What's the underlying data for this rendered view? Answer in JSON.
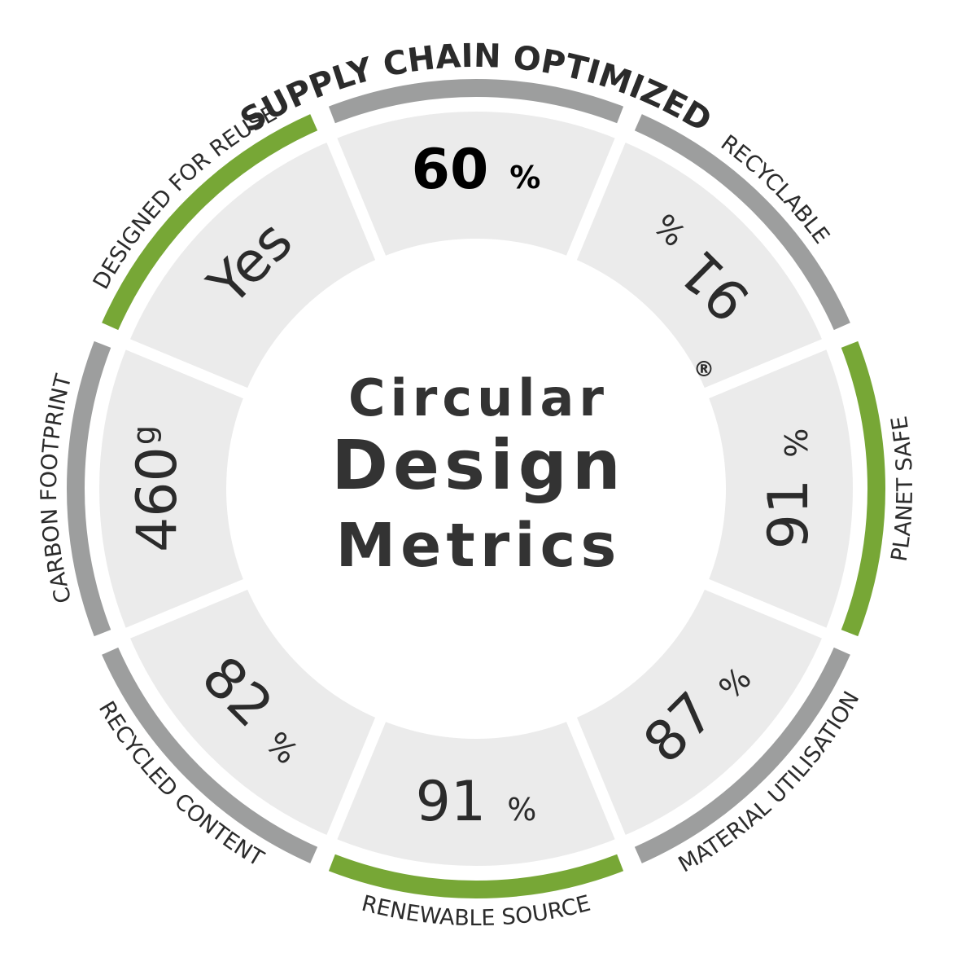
{
  "center": {
    "lines": [
      "Circular",
      "Design",
      "Metrics"
    ],
    "mark": "®"
  },
  "segments": [
    {
      "label": "SUPPLY CHAIN OPTIMIZED",
      "value": 60,
      "unit": "%"
    },
    {
      "label": "RECYCLABLE",
      "value": 91,
      "unit": "%"
    },
    {
      "label": "PLANET SAFE",
      "value": 91,
      "unit": "%"
    },
    {
      "label": "MATERIAL UTILISATION",
      "value": 87,
      "unit": "%"
    },
    {
      "label": "RENEWABLE SOURCE",
      "value": 91,
      "unit": "%"
    },
    {
      "label": "RECYCLED CONTENT",
      "value": 82,
      "unit": "%"
    },
    {
      "label": "CARBON FOOTPRINT",
      "value": 460,
      "unit": "g"
    },
    {
      "label": "DESIGNED FOR REUSE",
      "value": "Yes"
    }
  ]
}
